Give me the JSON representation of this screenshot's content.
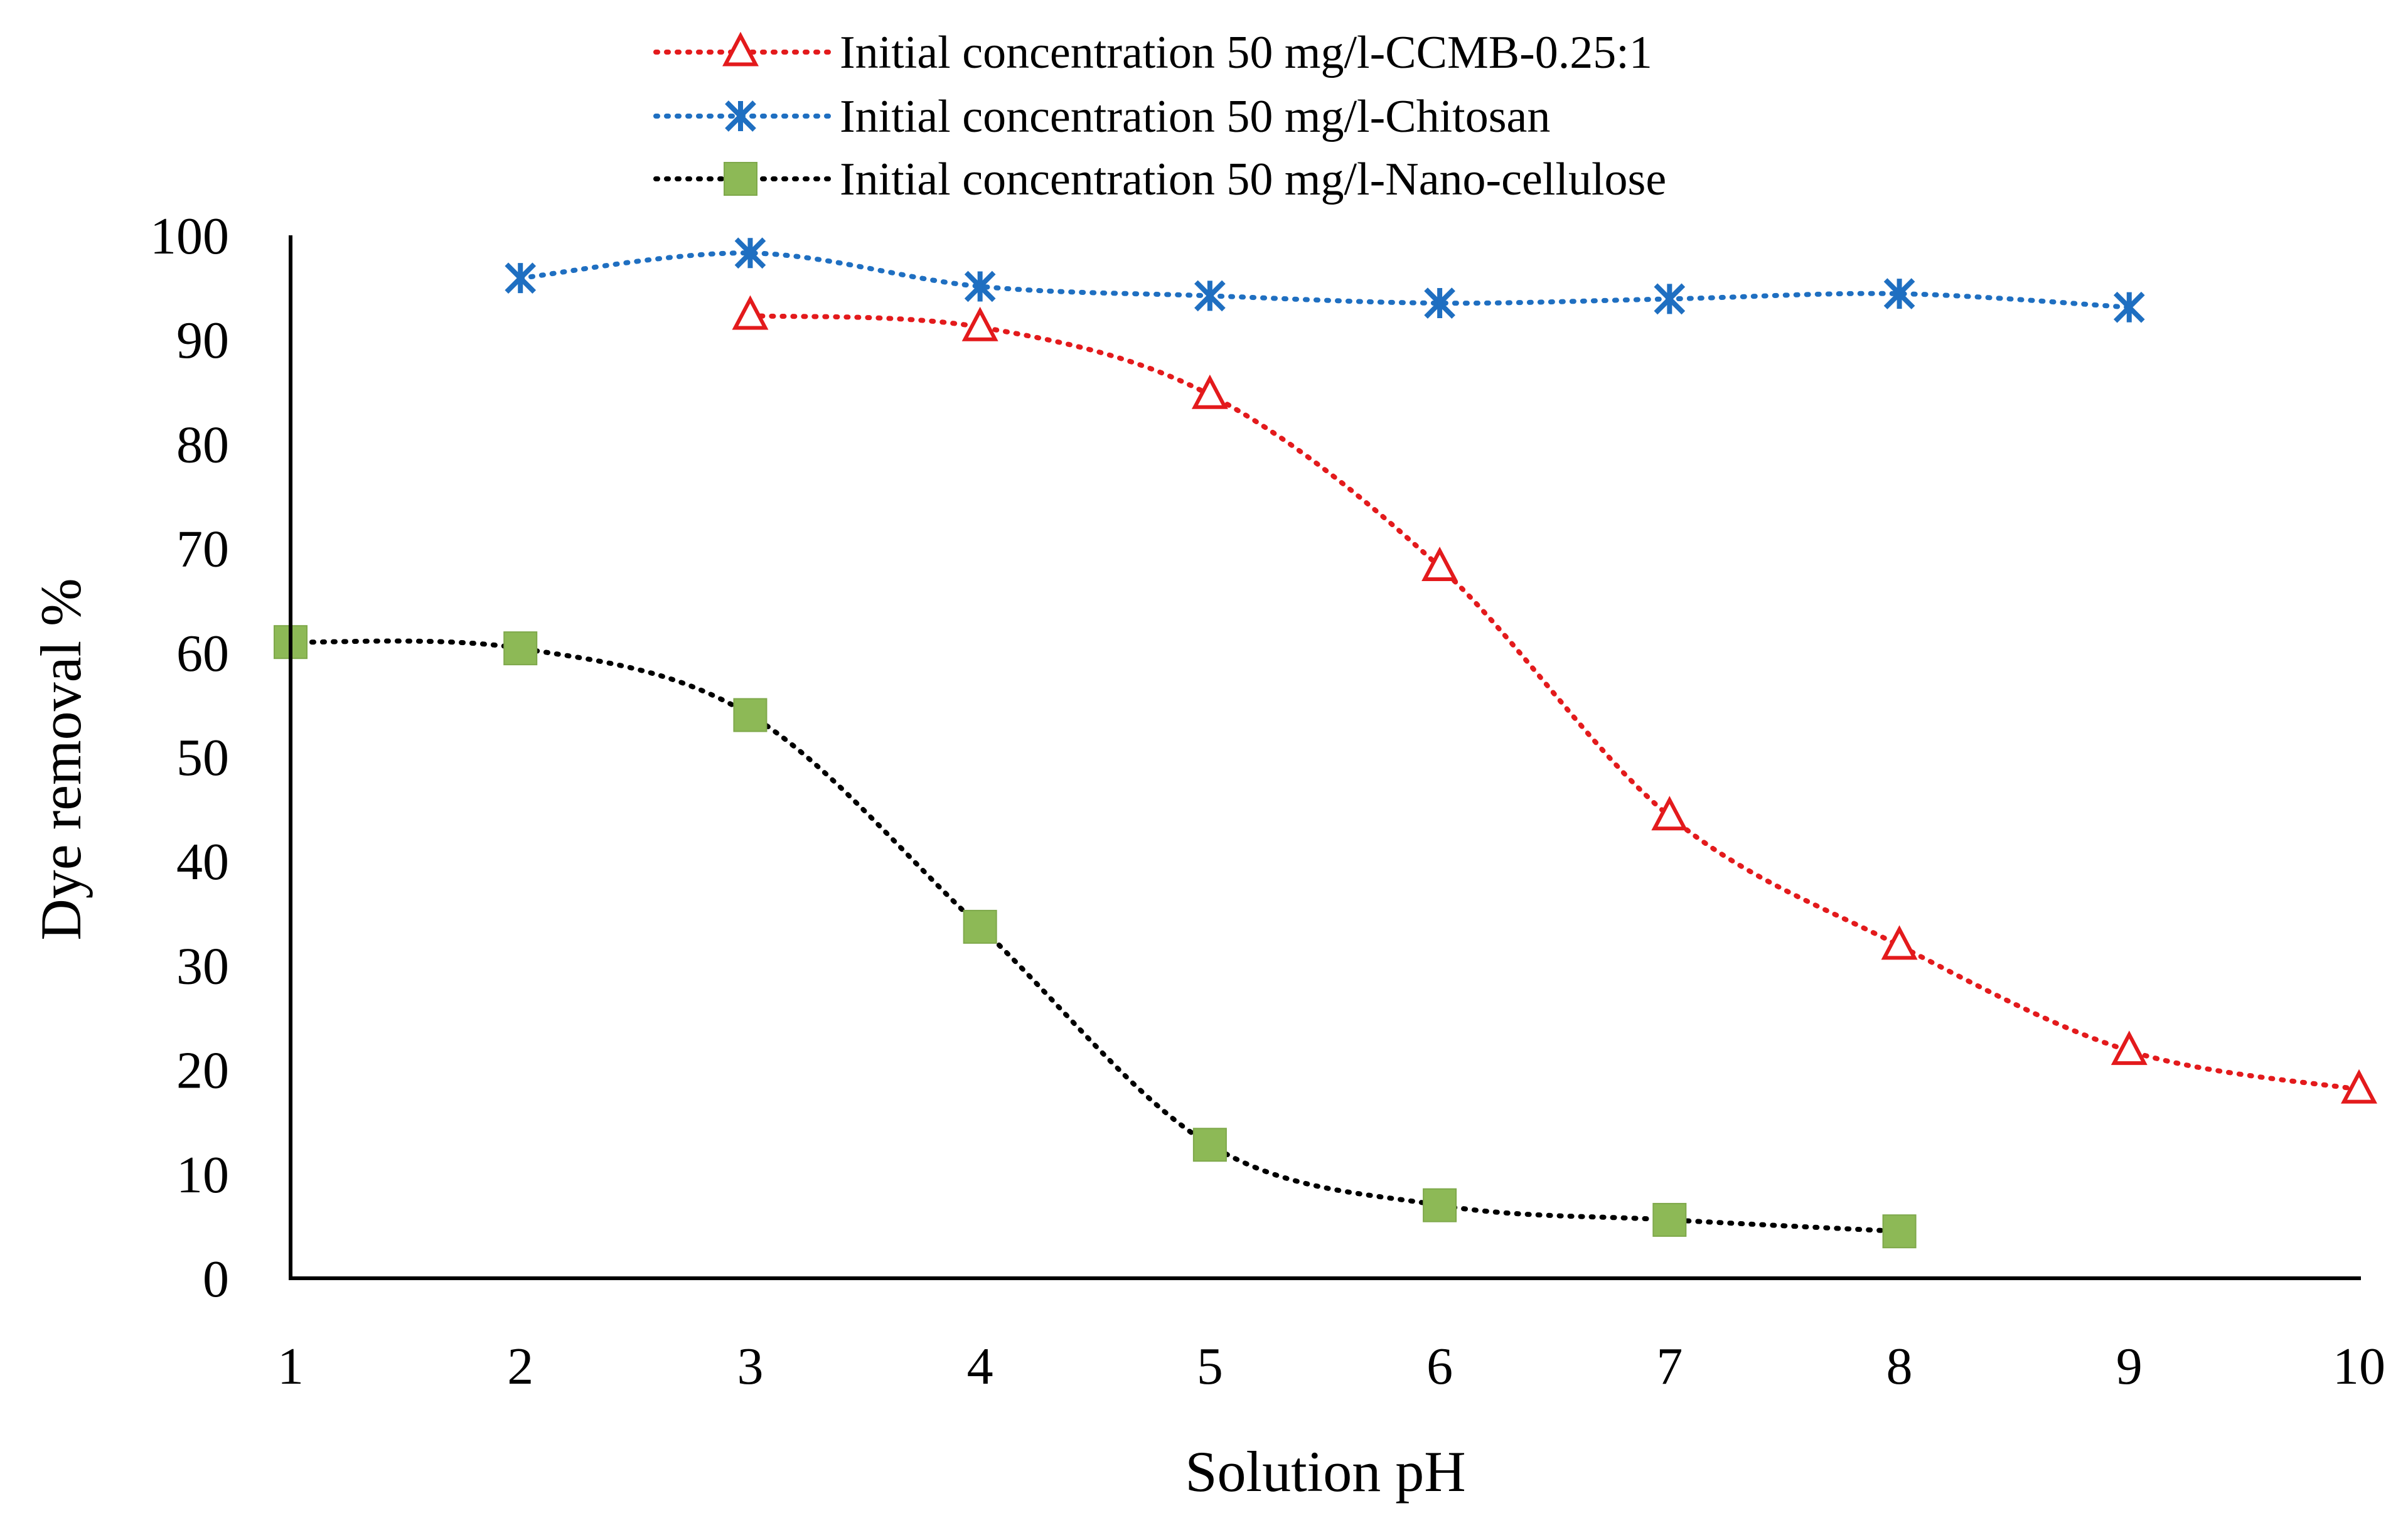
{
  "chart_data": {
    "type": "line",
    "title": "",
    "xlabel": "Solution pH",
    "ylabel": "Dye removal %",
    "xlim": [
      1,
      10
    ],
    "ylim": [
      0,
      100
    ],
    "x_ticks": [
      1,
      2,
      3,
      4,
      5,
      6,
      7,
      8,
      9,
      10
    ],
    "y_ticks": [
      0,
      10,
      20,
      30,
      40,
      50,
      60,
      70,
      80,
      90,
      100
    ],
    "grid": false,
    "legend_position": "top-center",
    "line_style": "dotted-smoothed",
    "series": [
      {
        "name": "Initial concentration 50 mg/l-CCMB-0.25:1",
        "color": "#e31a1c",
        "marker": "triangle-open",
        "x": [
          3,
          4,
          5,
          6,
          7,
          8,
          9,
          10
        ],
        "y": [
          92.3,
          91.2,
          84.7,
          68.2,
          44.3,
          31.9,
          21.8,
          18.1
        ]
      },
      {
        "name": "Initial concentration 50 mg/l-Chitosan",
        "color": "#1f6fc1",
        "marker": "asterisk",
        "x": [
          2,
          3,
          4,
          5,
          6,
          7,
          8,
          9
        ],
        "y": [
          95.9,
          98.3,
          95.1,
          94.2,
          93.5,
          93.9,
          94.4,
          93.1
        ]
      },
      {
        "name": "Initial concentration 50 mg/l-Nano-cellulose",
        "color": "#000000",
        "marker_color": "#8db956",
        "marker": "square",
        "x": [
          1,
          2,
          3,
          4,
          5,
          6,
          7,
          8
        ],
        "y": [
          61.0,
          60.4,
          54.0,
          33.7,
          12.8,
          7.0,
          5.6,
          4.5
        ]
      }
    ]
  }
}
